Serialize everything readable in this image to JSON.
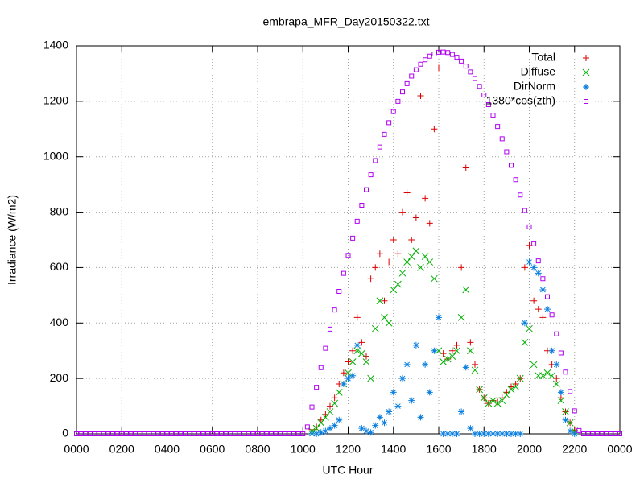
{
  "chart_data": {
    "type": "scatter",
    "title": "embrapa_MFR_Day20150322.txt",
    "x_label": "UTC Hour",
    "y_label": "Irradiance (W/m2)",
    "xlim": [
      0,
      24
    ],
    "ylim": [
      0,
      1400
    ],
    "xticks": [
      {
        "value": 0,
        "label": "0000"
      },
      {
        "value": 2,
        "label": "0200"
      },
      {
        "value": 4,
        "label": "0400"
      },
      {
        "value": 6,
        "label": "0600"
      },
      {
        "value": 8,
        "label": "0800"
      },
      {
        "value": 10,
        "label": "1000"
      },
      {
        "value": 12,
        "label": "1200"
      },
      {
        "value": 14,
        "label": "1400"
      },
      {
        "value": 16,
        "label": "1600"
      },
      {
        "value": 18,
        "label": "1800"
      },
      {
        "value": 20,
        "label": "2000"
      },
      {
        "value": 22,
        "label": "2200"
      },
      {
        "value": 24,
        "label": "0000"
      }
    ],
    "yticks": [
      0,
      200,
      400,
      600,
      800,
      1000,
      1200,
      1400
    ],
    "grid": true,
    "legend": "top-right",
    "series": [
      {
        "name": "Total",
        "color": "#dd0000",
        "marker": "plus",
        "x": [
          10.4,
          10.6,
          10.8,
          11.0,
          11.2,
          11.4,
          11.6,
          11.8,
          12.0,
          12.2,
          12.4,
          12.6,
          12.8,
          13.0,
          13.2,
          13.4,
          13.6,
          13.8,
          14.0,
          14.2,
          14.4,
          14.6,
          14.8,
          15.0,
          15.2,
          15.4,
          15.6,
          15.8,
          16.0,
          16.2,
          16.4,
          16.6,
          16.8,
          17.0,
          17.2,
          17.4,
          17.6,
          17.8,
          18.0,
          18.2,
          18.4,
          18.6,
          18.8,
          19.0,
          19.2,
          19.4,
          19.6,
          19.8,
          20.0,
          20.2,
          20.4,
          20.6,
          20.8,
          21.0,
          21.2,
          21.4,
          21.6,
          21.8,
          22.0
        ],
        "values": [
          15,
          25,
          50,
          70,
          100,
          130,
          180,
          220,
          260,
          300,
          420,
          330,
          280,
          560,
          600,
          650,
          480,
          620,
          700,
          650,
          800,
          870,
          700,
          780,
          1220,
          850,
          760,
          1100,
          1320,
          290,
          270,
          300,
          320,
          600,
          960,
          330,
          250,
          160,
          130,
          110,
          120,
          115,
          130,
          150,
          170,
          180,
          200,
          600,
          680,
          480,
          450,
          420,
          300,
          250,
          200,
          130,
          80,
          40,
          12
        ]
      },
      {
        "name": "Diffuse",
        "color": "#00b000",
        "marker": "cross",
        "x": [
          10.4,
          10.6,
          10.8,
          11.0,
          11.2,
          11.4,
          11.6,
          11.8,
          12.0,
          12.2,
          12.4,
          12.6,
          12.8,
          13.0,
          13.2,
          13.4,
          13.6,
          13.8,
          14.0,
          14.2,
          14.4,
          14.6,
          14.8,
          15.0,
          15.2,
          15.4,
          15.6,
          15.8,
          16.0,
          16.2,
          16.4,
          16.6,
          16.8,
          17.0,
          17.2,
          17.4,
          17.6,
          17.8,
          18.0,
          18.2,
          18.4,
          18.6,
          18.8,
          19.0,
          19.2,
          19.4,
          19.6,
          19.8,
          20.0,
          20.2,
          20.4,
          20.6,
          20.8,
          21.0,
          21.2,
          21.4,
          21.6,
          21.8,
          22.0
        ],
        "values": [
          10,
          20,
          40,
          60,
          80,
          110,
          150,
          180,
          220,
          260,
          300,
          290,
          260,
          200,
          380,
          480,
          420,
          400,
          520,
          540,
          580,
          620,
          640,
          660,
          600,
          640,
          620,
          560,
          300,
          260,
          270,
          280,
          300,
          420,
          520,
          300,
          230,
          160,
          130,
          110,
          120,
          110,
          120,
          140,
          160,
          170,
          200,
          330,
          380,
          250,
          210,
          210,
          220,
          210,
          180,
          120,
          80,
          40,
          10
        ]
      },
      {
        "name": "DirNorm",
        "color": "#0a7fe0",
        "marker": "star",
        "x": [
          10.4,
          10.6,
          10.8,
          11.0,
          11.2,
          11.4,
          11.6,
          11.8,
          12.0,
          12.2,
          12.4,
          12.6,
          12.8,
          13.0,
          13.2,
          13.4,
          13.6,
          13.8,
          14.0,
          14.2,
          14.4,
          14.6,
          14.8,
          15.0,
          15.2,
          15.4,
          15.6,
          15.8,
          16.0,
          16.2,
          16.4,
          16.6,
          16.8,
          17.0,
          17.2,
          17.4,
          17.6,
          17.8,
          18.0,
          18.2,
          18.4,
          18.6,
          18.8,
          19.0,
          19.2,
          19.4,
          19.6,
          19.8,
          20.0,
          20.2,
          20.4,
          20.6,
          20.8,
          21.0,
          21.2,
          21.4,
          21.6,
          21.8,
          22.0
        ],
        "values": [
          0,
          0,
          5,
          10,
          20,
          30,
          50,
          180,
          200,
          210,
          320,
          20,
          10,
          5,
          30,
          60,
          40,
          80,
          150,
          100,
          200,
          250,
          120,
          320,
          60,
          250,
          150,
          300,
          420,
          0,
          0,
          0,
          0,
          80,
          240,
          20,
          0,
          0,
          0,
          0,
          0,
          0,
          0,
          0,
          0,
          0,
          0,
          400,
          620,
          600,
          580,
          520,
          450,
          300,
          250,
          150,
          50,
          10,
          0
        ]
      },
      {
        "name": "1380*cos(zth)",
        "color": "#b000f0",
        "marker": "square",
        "x": [
          0,
          0.2,
          0.4,
          0.6,
          0.8,
          1.0,
          1.2,
          1.4,
          1.6,
          1.8,
          2.0,
          2.2,
          2.4,
          2.6,
          2.8,
          3.0,
          3.2,
          3.4,
          3.6,
          3.8,
          4.0,
          4.2,
          4.4,
          4.6,
          4.8,
          5.0,
          5.2,
          5.4,
          5.6,
          5.8,
          6.0,
          6.2,
          6.4,
          6.6,
          6.8,
          7.0,
          7.2,
          7.4,
          7.6,
          7.8,
          8.0,
          8.2,
          8.4,
          8.6,
          8.8,
          9.0,
          9.2,
          9.4,
          9.6,
          9.8,
          10.0,
          10.2,
          10.4,
          10.6,
          10.8,
          11.0,
          11.2,
          11.4,
          11.6,
          11.8,
          12.0,
          12.2,
          12.4,
          12.6,
          12.8,
          13.0,
          13.2,
          13.4,
          13.6,
          13.8,
          14.0,
          14.2,
          14.4,
          14.6,
          14.8,
          15.0,
          15.2,
          15.4,
          15.6,
          15.8,
          16.0,
          16.2,
          16.4,
          16.6,
          16.8,
          17.0,
          17.2,
          17.4,
          17.6,
          17.8,
          18.0,
          18.2,
          18.4,
          18.6,
          18.8,
          19.0,
          19.2,
          19.4,
          19.6,
          19.8,
          20.0,
          20.2,
          20.4,
          20.6,
          20.8,
          21.0,
          21.2,
          21.4,
          21.6,
          21.8,
          22.0,
          22.2,
          22.4,
          22.6,
          22.8,
          23.0,
          23.2,
          23.4,
          23.6,
          23.8,
          24.0
        ],
        "values": [
          0,
          0,
          0,
          0,
          0,
          0,
          0,
          0,
          0,
          0,
          0,
          0,
          0,
          0,
          0,
          0,
          0,
          0,
          0,
          0,
          0,
          0,
          0,
          0,
          0,
          0,
          0,
          0,
          0,
          0,
          0,
          0,
          0,
          0,
          0,
          0,
          0,
          0,
          0,
          0,
          0,
          0,
          0,
          0,
          0,
          0,
          0,
          0,
          0,
          0,
          0,
          25,
          97,
          168,
          239,
          309,
          378,
          447,
          514,
          579,
          644,
          706,
          767,
          825,
          881,
          935,
          986,
          1035,
          1081,
          1123,
          1163,
          1200,
          1234,
          1264,
          1291,
          1314,
          1334,
          1350,
          1363,
          1371,
          1377,
          1378,
          1376,
          1369,
          1359,
          1345,
          1327,
          1306,
          1282,
          1254,
          1223,
          1188,
          1150,
          1109,
          1065,
          1018,
          969,
          917,
          862,
          806,
          747,
          686,
          624,
          560,
          495,
          429,
          361,
          292,
          223,
          153,
          83,
          12,
          0,
          0,
          0,
          0,
          0,
          0,
          0,
          0,
          0
        ]
      }
    ]
  }
}
